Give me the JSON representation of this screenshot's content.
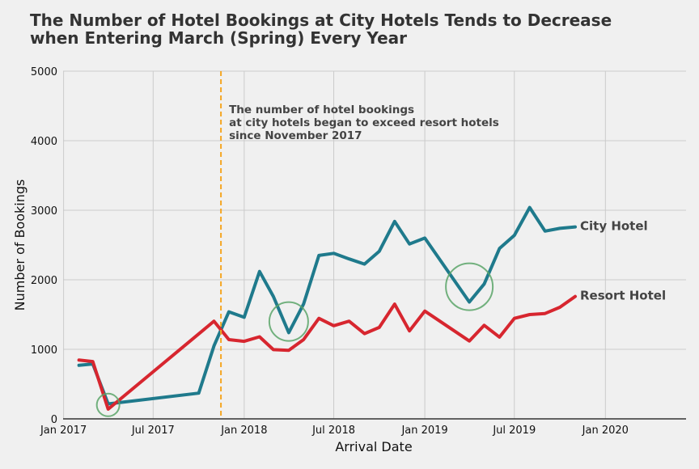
{
  "chart_data": {
    "type": "line",
    "title_lines": [
      "The Number of Hotel Bookings at City Hotels Tends to Decrease",
      "when Entering March (Spring) Every Year"
    ],
    "xlabel": "Arrival Date",
    "ylabel": "Number of Bookings",
    "x_axis": {
      "ticks": [
        {
          "date": "2017-01",
          "label": "Jan 2017"
        },
        {
          "date": "2017-07",
          "label": "Jul 2017"
        },
        {
          "date": "2018-01",
          "label": "Jan 2018"
        },
        {
          "date": "2018-07",
          "label": "Jul 2018"
        },
        {
          "date": "2019-01",
          "label": "Jan 2019"
        },
        {
          "date": "2019-07",
          "label": "Jul 2019"
        },
        {
          "date": "2020-01",
          "label": "Jan 2020"
        }
      ],
      "range": [
        "2016-12-31",
        "2020-06-12"
      ]
    },
    "y_axis": {
      "ticks": [
        0,
        1000,
        2000,
        3000,
        4000,
        5000
      ],
      "range": [
        0,
        5000
      ]
    },
    "grid": true,
    "series": [
      {
        "name": "City Hotel",
        "color": "#1f7a8c",
        "points": [
          [
            "2017-02",
            770
          ],
          [
            "2017-03",
            790
          ],
          [
            "2017-04",
            215
          ],
          [
            "2017-10",
            370
          ],
          [
            "2017-11",
            1050
          ],
          [
            "2017-12",
            1540
          ],
          [
            "2018-01",
            1460
          ],
          [
            "2018-02",
            2120
          ],
          [
            "2018-03",
            1760
          ],
          [
            "2018-04",
            1240
          ],
          [
            "2018-05",
            1650
          ],
          [
            "2018-06",
            2350
          ],
          [
            "2018-07",
            2380
          ],
          [
            "2018-08",
            2300
          ],
          [
            "2018-09",
            2225
          ],
          [
            "2018-10",
            2410
          ],
          [
            "2018-11",
            2840
          ],
          [
            "2018-12",
            2515
          ],
          [
            "2019-01",
            2600
          ],
          [
            "2019-04",
            1680
          ],
          [
            "2019-05",
            1940
          ],
          [
            "2019-06",
            2450
          ],
          [
            "2019-07",
            2640
          ],
          [
            "2019-08",
            3040
          ],
          [
            "2019-09",
            2700
          ],
          [
            "2019-10",
            2740
          ],
          [
            "2019-11",
            2760
          ]
        ]
      },
      {
        "name": "Resort Hotel",
        "color": "#d7262f",
        "points": [
          [
            "2017-02",
            845
          ],
          [
            "2017-03",
            825
          ],
          [
            "2017-04",
            140
          ],
          [
            "2017-11",
            1405
          ],
          [
            "2017-12",
            1140
          ],
          [
            "2018-01",
            1115
          ],
          [
            "2018-02",
            1180
          ],
          [
            "2018-03",
            995
          ],
          [
            "2018-04",
            985
          ],
          [
            "2018-05",
            1140
          ],
          [
            "2018-06",
            1445
          ],
          [
            "2018-07",
            1340
          ],
          [
            "2018-08",
            1405
          ],
          [
            "2018-09",
            1225
          ],
          [
            "2018-10",
            1315
          ],
          [
            "2018-11",
            1650
          ],
          [
            "2018-12",
            1265
          ],
          [
            "2019-01",
            1550
          ],
          [
            "2019-04",
            1120
          ],
          [
            "2019-05",
            1345
          ],
          [
            "2019-06",
            1175
          ],
          [
            "2019-07",
            1445
          ],
          [
            "2019-08",
            1500
          ],
          [
            "2019-09",
            1515
          ],
          [
            "2019-10",
            1605
          ],
          [
            "2019-11",
            1760
          ]
        ]
      }
    ],
    "reference_line": {
      "date": "2017-11-15",
      "color": "#f5a623"
    },
    "annotation_lines": [
      "The number of hotel bookings",
      "at city hotels began to exceed resort hotels",
      "since November 2017"
    ],
    "highlight_circles": [
      {
        "date": "2017-04",
        "value": 200
      },
      {
        "date": "2018-04",
        "value": 1400
      },
      {
        "date": "2019-04",
        "value": 1900
      }
    ],
    "highlight_color": "#5aa469"
  }
}
